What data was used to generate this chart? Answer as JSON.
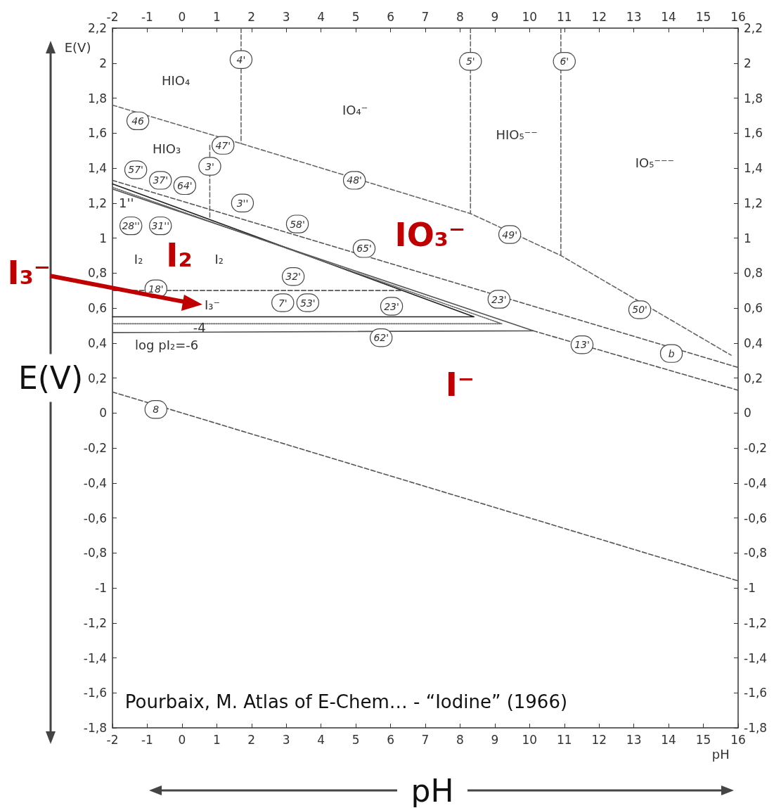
{
  "chart_data": {
    "type": "line",
    "xlabel": "pH",
    "ylabel": "E(V)",
    "marker": "none",
    "xlim": [
      -2,
      16
    ],
    "xticks": [
      -2,
      -1,
      0,
      1,
      2,
      3,
      4,
      5,
      6,
      7,
      8,
      9,
      10,
      11,
      12,
      13,
      14,
      15,
      16
    ],
    "x2lim": [
      -2,
      16
    ],
    "x2ticks": [
      -2,
      -1,
      0,
      1,
      2,
      3,
      4,
      5,
      6,
      7,
      8,
      9,
      10,
      11,
      12,
      13,
      14,
      15,
      16
    ],
    "ylim": [
      -1.8,
      2.2
    ],
    "yticks": [
      {
        "value": -1.8,
        "label": "-1,8"
      },
      {
        "value": -1.6,
        "label": "-1,6"
      },
      {
        "value": -1.4,
        "label": "-1,4"
      },
      {
        "value": -1.2,
        "label": "-1,2"
      },
      -1,
      {
        "value": -0.8,
        "label": "-0,8"
      },
      {
        "value": -0.6,
        "label": "-0,6"
      },
      {
        "value": -0.4,
        "label": "-0,4"
      },
      {
        "value": -0.2,
        "label": "-0,2"
      },
      0,
      {
        "value": 0.2,
        "label": "0,2"
      },
      {
        "value": 0.4,
        "label": "0,4"
      },
      {
        "value": 0.6,
        "label": "0,6"
      },
      {
        "value": 0.8,
        "label": "0,8"
      },
      1,
      {
        "value": 1.2,
        "label": "1,2"
      },
      {
        "value": 1.4,
        "label": "1,4"
      },
      {
        "value": 1.6,
        "label": "1,6"
      },
      {
        "value": 1.8,
        "label": "1,8"
      },
      2,
      {
        "value": 2.2,
        "label": "2,2"
      }
    ],
    "y2lim": [
      -1.8,
      2.2
    ],
    "y2ticks": [
      {
        "value": -1.8,
        "label": "-1,8"
      },
      {
        "value": -1.6,
        "label": "-1,6"
      },
      {
        "value": -1.4,
        "label": "-1,4"
      },
      {
        "value": -1.2,
        "label": "-1,2"
      },
      -1,
      {
        "value": -0.8,
        "label": "-0,8"
      },
      {
        "value": -0.6,
        "label": "-0,6"
      },
      {
        "value": -0.4,
        "label": "-0,4"
      },
      {
        "value": -0.2,
        "label": "-0,2"
      },
      0,
      {
        "value": 0.2,
        "label": "0,2"
      },
      {
        "value": 0.4,
        "label": "0,4"
      },
      {
        "value": 0.6,
        "label": "0,6"
      },
      {
        "value": 0.8,
        "label": "0,8"
      },
      1,
      {
        "value": 1.2,
        "label": "1,2"
      },
      {
        "value": 1.4,
        "label": "1,4"
      },
      {
        "value": 1.6,
        "label": "1,6"
      },
      {
        "value": 1.8,
        "label": "1,8"
      },
      2,
      {
        "value": 2.2,
        "label": "2,2"
      }
    ],
    "series": [
      {
        "x": [
          -2,
          16
        ],
        "values": [
          0.12,
          -0.96
        ],
        "color": "#555555",
        "line_style": "dashed"
      },
      {
        "x": [
          -2,
          16
        ],
        "values": [
          1.33,
          0.26
        ],
        "color": "#555555",
        "line_style": "dashed"
      },
      {
        "x": [
          -2,
          1.7,
          8.3,
          10.9,
          15.8
        ],
        "values": [
          1.76,
          1.54,
          1.14,
          0.9,
          0.33
        ],
        "color": "#666666",
        "line_style": "dashed"
      },
      {
        "x": [
          -2,
          6.3
        ],
        "values": [
          0.7,
          0.7
        ],
        "color": "#555555",
        "line_style": "dashed"
      },
      {
        "x": [
          10.1,
          16
        ],
        "values": [
          0.47,
          0.13
        ],
        "color": "#555555",
        "line_style": "dashed"
      },
      {
        "x": [
          -2,
          8.4,
          -2
        ],
        "values": [
          1.31,
          0.55,
          0.55
        ],
        "color": "#222222",
        "line_style": "solid"
      },
      {
        "x": [
          -2,
          9.2,
          -2
        ],
        "values": [
          1.29,
          0.51,
          0.51
        ],
        "color": "#666666",
        "line_style": "dotted"
      },
      {
        "x": [
          -2,
          10.1,
          -2
        ],
        "values": [
          1.28,
          0.47,
          0.46
        ],
        "color": "#555555",
        "line_style": "solid"
      },
      {
        "x": [
          1.7,
          1.7
        ],
        "values": [
          2.2,
          1.54
        ],
        "color": "#666666",
        "line_style": "dashed"
      },
      {
        "x": [
          8.3,
          8.3
        ],
        "values": [
          2.2,
          1.14
        ],
        "color": "#666666",
        "line_style": "dashed"
      },
      {
        "x": [
          10.9,
          10.9
        ],
        "values": [
          2.2,
          0.9
        ],
        "color": "#666666",
        "line_style": "dashed"
      },
      {
        "x": [
          0.8,
          0.8
        ],
        "values": [
          1.53,
          1.11
        ],
        "color": "#666666",
        "line_style": "dashed"
      }
    ],
    "annotations": [
      {
        "text": "4'",
        "x": 1.7,
        "y": 2.02
      },
      {
        "text": "5'",
        "x": 8.3,
        "y": 2.01
      },
      {
        "text": "6'",
        "x": 11.0,
        "y": 2.01
      },
      {
        "text": "46",
        "x": -1.27,
        "y": 1.67
      },
      {
        "text": "47'",
        "x": 1.18,
        "y": 1.53
      },
      {
        "text": "3'",
        "x": 0.8,
        "y": 1.41
      },
      {
        "text": "48'",
        "x": 4.96,
        "y": 1.33
      },
      {
        "text": "57'",
        "x": -1.33,
        "y": 1.39
      },
      {
        "text": "37'",
        "x": -0.62,
        "y": 1.33
      },
      {
        "text": "64'",
        "x": 0.08,
        "y": 1.3
      },
      {
        "text": "28''",
        "x": -1.47,
        "y": 1.07
      },
      {
        "text": "31''",
        "x": -0.62,
        "y": 1.07
      },
      {
        "text": "3''",
        "x": 1.74,
        "y": 1.2
      },
      {
        "text": "58'",
        "x": 3.32,
        "y": 1.08
      },
      {
        "text": "65'",
        "x": 5.24,
        "y": 0.94
      },
      {
        "text": "32'",
        "x": 3.2,
        "y": 0.78
      },
      {
        "text": "18'",
        "x": -0.75,
        "y": 0.71
      },
      {
        "text": "7'",
        "x": 2.9,
        "y": 0.63
      },
      {
        "text": "53'",
        "x": 3.62,
        "y": 0.63
      },
      {
        "text": "23'",
        "x": 6.03,
        "y": 0.61
      },
      {
        "text": "23'",
        "x": 9.12,
        "y": 0.65
      },
      {
        "text": "62'",
        "x": 5.73,
        "y": 0.43
      },
      {
        "text": "49'",
        "x": 9.43,
        "y": 1.02
      },
      {
        "text": "50'",
        "x": 13.17,
        "y": 0.59
      },
      {
        "text": "13'",
        "x": 11.51,
        "y": 0.39
      },
      {
        "text": "b",
        "x": 14.08,
        "y": 0.34
      },
      {
        "text": "8",
        "x": -0.75,
        "y": 0.02
      },
      "1''",
      "HIO₄",
      "IO₄⁻",
      "HIO₅⁻⁻",
      "IO₅⁻⁻⁻",
      "HIO₃",
      "I₂",
      "I₂",
      "-4",
      "log pI₂=-6",
      "IO₃⁻",
      "I₂",
      "I⁻",
      "I₃⁻",
      "I₃⁻",
      "E(V)",
      "pH",
      "Pourbaix, M. Atlas of E-Chem… - “Iodine” (1966)"
    ]
  }
}
